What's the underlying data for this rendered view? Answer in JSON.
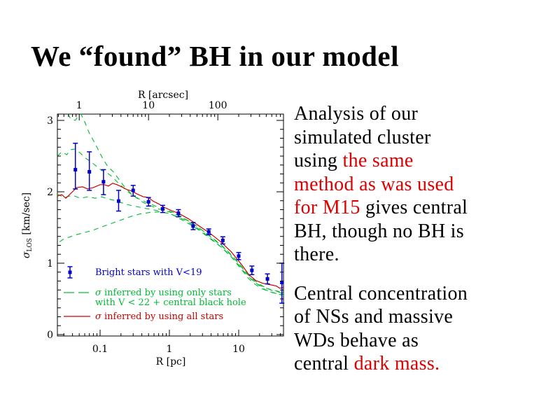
{
  "slide": {
    "title": "We “found” BH in our model"
  },
  "colors": {
    "background": "#ffffff",
    "text_black": "#000000",
    "accent_red": "#dd0000",
    "curve_red": "#cc0000",
    "curve_green": "#00bb33",
    "point_blue": "#0000cc"
  },
  "paragraphs": [
    {
      "name": "analysis",
      "lines": [
        [
          {
            "t": "Analysis of our",
            "c": "k"
          }
        ],
        [
          {
            "t": "simulated cluster",
            "c": "k"
          }
        ],
        [
          {
            "t": "using ",
            "c": "k"
          },
          {
            "t": "the same",
            "c": "r"
          }
        ],
        [
          {
            "t": "method as was used",
            "c": "r"
          }
        ],
        [
          {
            "t": "for M15",
            "c": "r"
          },
          {
            "t": " gives central",
            "c": "k"
          }
        ],
        [
          {
            "t": "BH, though no BH is",
            "c": "k"
          }
        ],
        [
          {
            "t": "there.",
            "c": "k"
          }
        ]
      ]
    },
    {
      "name": "central-concentration",
      "lines": [
        [
          {
            "t": "Central concentration",
            "c": "k"
          }
        ],
        [
          {
            "t": "of NSs and massive",
            "c": "k"
          }
        ],
        [
          {
            "t": "WDs behave as",
            "c": "k"
          }
        ],
        [
          {
            "t": "central ",
            "c": "k"
          },
          {
            "t": "dark mass.",
            "c": "r"
          }
        ]
      ]
    }
  ],
  "chart_data": {
    "type": "line",
    "title": "",
    "xlabel_bottom": "R [pc]",
    "xlabel_top": "R [arcsec]",
    "ylabel": "σ_LOS [km/sec]",
    "ylabel_parts": {
      "symbol": "σ",
      "sub": "LOS",
      "units": " [km/sec]"
    },
    "xlim_pc": [
      0.0242,
      44.3
    ],
    "ylim": [
      0,
      3.09
    ],
    "x_ticks_bottom_pc": [
      0.1,
      1,
      10
    ],
    "x_ticks_top_arcsec": [
      1,
      10,
      100
    ],
    "y_ticks": [
      0,
      1,
      2,
      3
    ],
    "arcsec_per_pc": 20,
    "grid": false,
    "legend_position": "inside-lower-left",
    "legend": [
      {
        "symbol": "errorbar-point",
        "color": "#0000cc",
        "lines": [
          "Bright stars with V<19"
        ]
      },
      {
        "symbol": "dashed-line",
        "color": "#00bb33",
        "lines": [
          "σ inferred by using only stars",
          "with V < 22 + central black hole"
        ]
      },
      {
        "symbol": "solid-line",
        "color": "#cc0000",
        "lines": [
          "σ inferred by using all stars"
        ]
      }
    ],
    "series": [
      {
        "name": "sigma inferred (only stars V<22 + central BH) — upper bound",
        "style": "dashed",
        "color": "#00bb33",
        "points": [
          [
            0.034,
            3.09
          ],
          [
            0.038,
            3.02
          ],
          [
            0.044,
            3.0
          ],
          [
            0.048,
            3.06
          ],
          [
            0.053,
            3.09
          ],
          [
            0.06,
            2.98
          ],
          [
            0.07,
            2.82
          ],
          [
            0.082,
            2.7
          ],
          [
            0.095,
            2.58
          ],
          [
            0.11,
            2.46
          ],
          [
            0.13,
            2.35
          ],
          [
            0.155,
            2.28
          ],
          [
            0.185,
            2.18
          ],
          [
            0.22,
            2.08
          ],
          [
            0.27,
            1.99
          ],
          [
            0.33,
            1.92
          ],
          [
            0.42,
            1.85
          ],
          [
            0.55,
            1.8
          ],
          [
            0.7,
            1.76
          ],
          [
            0.9,
            1.73
          ],
          [
            1.15,
            1.7
          ],
          [
            1.6,
            1.63
          ],
          [
            2.1,
            1.56
          ],
          [
            2.8,
            1.48
          ],
          [
            4,
            1.37
          ],
          [
            5.7,
            1.25
          ],
          [
            8,
            1.11
          ],
          [
            11.5,
            0.93
          ],
          [
            14.5,
            0.8
          ],
          [
            18,
            0.72
          ],
          [
            23,
            0.66
          ],
          [
            29,
            0.63
          ],
          [
            36,
            0.61
          ],
          [
            41,
            0.59
          ],
          [
            44.3,
            0.63
          ]
        ]
      },
      {
        "name": "sigma inferred (only stars V<22 + central BH) — central",
        "style": "dashed",
        "color": "#00bb33",
        "points": [
          [
            0.0242,
            2.5
          ],
          [
            0.028,
            2.56
          ],
          [
            0.033,
            2.52
          ],
          [
            0.038,
            2.59
          ],
          [
            0.044,
            2.6
          ],
          [
            0.052,
            2.54
          ],
          [
            0.062,
            2.47
          ],
          [
            0.074,
            2.42
          ],
          [
            0.088,
            2.36
          ],
          [
            0.105,
            2.3
          ],
          [
            0.125,
            2.27
          ],
          [
            0.15,
            2.21
          ],
          [
            0.18,
            2.13
          ],
          [
            0.215,
            2.06
          ],
          [
            0.26,
            1.99
          ],
          [
            0.32,
            1.93
          ],
          [
            0.4,
            1.88
          ],
          [
            0.5,
            1.84
          ],
          [
            0.63,
            1.8
          ],
          [
            0.8,
            1.76
          ],
          [
            1.0,
            1.73
          ],
          [
            1.3,
            1.69
          ],
          [
            1.7,
            1.62
          ],
          [
            2.3,
            1.54
          ],
          [
            3.1,
            1.45
          ],
          [
            4.4,
            1.33
          ],
          [
            6.2,
            1.21
          ],
          [
            8.8,
            1.06
          ],
          [
            12,
            0.9
          ],
          [
            15,
            0.8
          ],
          [
            19,
            0.72
          ],
          [
            24,
            0.66
          ],
          [
            30,
            0.62
          ],
          [
            37,
            0.6
          ],
          [
            42,
            0.58
          ],
          [
            44.3,
            0.62
          ]
        ]
      },
      {
        "name": "sigma inferred (only stars V<22 + central BH) — lower descending bound",
        "style": "dashed",
        "color": "#00bb33",
        "points": [
          [
            0.0242,
            1.97
          ],
          [
            0.03,
            1.92
          ],
          [
            0.04,
            1.95
          ],
          [
            0.052,
            1.91
          ],
          [
            0.067,
            1.93
          ],
          [
            0.085,
            1.91
          ],
          [
            0.105,
            1.93
          ],
          [
            0.13,
            1.9
          ],
          [
            0.16,
            1.88
          ],
          [
            0.2,
            1.85
          ],
          [
            0.25,
            1.82
          ],
          [
            0.31,
            1.8
          ],
          [
            0.39,
            1.78
          ],
          [
            0.5,
            1.76
          ],
          [
            0.65,
            1.74
          ],
          [
            0.85,
            1.71
          ],
          [
            1.1,
            1.68
          ],
          [
            1.5,
            1.61
          ],
          [
            2,
            1.54
          ],
          [
            2.7,
            1.46
          ],
          [
            3.8,
            1.35
          ],
          [
            5.5,
            1.23
          ],
          [
            7.8,
            1.09
          ],
          [
            11,
            0.91
          ],
          [
            14,
            0.78
          ],
          [
            17.5,
            0.7
          ],
          [
            22,
            0.64
          ],
          [
            28,
            0.6
          ],
          [
            34,
            0.58
          ],
          [
            40,
            0.56
          ],
          [
            44.3,
            0.6
          ]
        ]
      },
      {
        "name": "sigma inferred (only stars V<22 + central BH) — rising lower bound",
        "style": "dashed",
        "color": "#00bb33",
        "points": [
          [
            0.026,
            1.3
          ],
          [
            0.03,
            1.34
          ],
          [
            0.037,
            1.37
          ],
          [
            0.046,
            1.4
          ],
          [
            0.06,
            1.43
          ],
          [
            0.078,
            1.46
          ],
          [
            0.1,
            1.5
          ],
          [
            0.13,
            1.54
          ],
          [
            0.17,
            1.58
          ],
          [
            0.22,
            1.62
          ],
          [
            0.29,
            1.66
          ],
          [
            0.38,
            1.69
          ],
          [
            0.52,
            1.71
          ],
          [
            0.72,
            1.72
          ],
          [
            0.95,
            1.7
          ],
          [
            1.25,
            1.66
          ],
          [
            1.7,
            1.6
          ],
          [
            2.3,
            1.52
          ],
          [
            3.1,
            1.43
          ],
          [
            4.4,
            1.31
          ],
          [
            6.2,
            1.19
          ],
          [
            8.8,
            1.04
          ],
          [
            12,
            0.88
          ],
          [
            15,
            0.78
          ],
          [
            19,
            0.7
          ],
          [
            24,
            0.63
          ],
          [
            30,
            0.59
          ],
          [
            37,
            0.57
          ],
          [
            42,
            0.55
          ],
          [
            44.3,
            0.58
          ]
        ]
      },
      {
        "name": "sigma inferred by using all stars",
        "style": "solid",
        "color": "#cc0000",
        "points": [
          [
            0.0242,
            1.94
          ],
          [
            0.028,
            1.96
          ],
          [
            0.032,
            1.91
          ],
          [
            0.038,
            1.98
          ],
          [
            0.046,
            2.06
          ],
          [
            0.056,
            2.07
          ],
          [
            0.066,
            2.04
          ],
          [
            0.08,
            2.06
          ],
          [
            0.1,
            2.1
          ],
          [
            0.115,
            2.1
          ],
          [
            0.132,
            2.08
          ],
          [
            0.152,
            2.12
          ],
          [
            0.175,
            2.1
          ],
          [
            0.205,
            2.07
          ],
          [
            0.245,
            2.03
          ],
          [
            0.29,
            2.01
          ],
          [
            0.34,
            1.97
          ],
          [
            0.42,
            1.93
          ],
          [
            0.5,
            1.92
          ],
          [
            0.58,
            1.87
          ],
          [
            0.7,
            1.83
          ],
          [
            0.85,
            1.78
          ],
          [
            1.05,
            1.74
          ],
          [
            1.35,
            1.7
          ],
          [
            1.9,
            1.62
          ],
          [
            2.7,
            1.52
          ],
          [
            3.85,
            1.42
          ],
          [
            5.5,
            1.3
          ],
          [
            7.8,
            1.16
          ],
          [
            11,
            0.98
          ],
          [
            14,
            0.84
          ],
          [
            17.5,
            0.76
          ],
          [
            22,
            0.72
          ],
          [
            28,
            0.7
          ],
          [
            35,
            0.68
          ],
          [
            39,
            0.65
          ],
          [
            44.3,
            0.66
          ]
        ]
      }
    ],
    "scatter": {
      "name": "Bright stars with V<19",
      "color": "#0000cc",
      "point_format": [
        "R_pc",
        "sigma",
        "err_lo",
        "err_hi"
      ],
      "points": [
        [
          0.044,
          2.31,
          0.27,
          0.37
        ],
        [
          0.07,
          2.28,
          0.26,
          0.28
        ],
        [
          0.112,
          2.14,
          0.18,
          0.17
        ],
        [
          0.185,
          1.87,
          0.14,
          0.15
        ],
        [
          0.3,
          2.02,
          0.08,
          0.07
        ],
        [
          0.5,
          1.86,
          0.06,
          0.06
        ],
        [
          0.8,
          1.76,
          0.05,
          0.05
        ],
        [
          1.35,
          1.7,
          0.05,
          0.05
        ],
        [
          2.2,
          1.52,
          0.05,
          0.05
        ],
        [
          3.7,
          1.44,
          0.04,
          0.04
        ],
        [
          5.9,
          1.32,
          0.05,
          0.05
        ],
        [
          10,
          1.1,
          0.05,
          0.05
        ],
        [
          15.5,
          0.9,
          0.06,
          0.06
        ],
        [
          26,
          0.78,
          0.07,
          0.07
        ],
        [
          42,
          0.73,
          0.29,
          0.27
        ]
      ]
    }
  }
}
